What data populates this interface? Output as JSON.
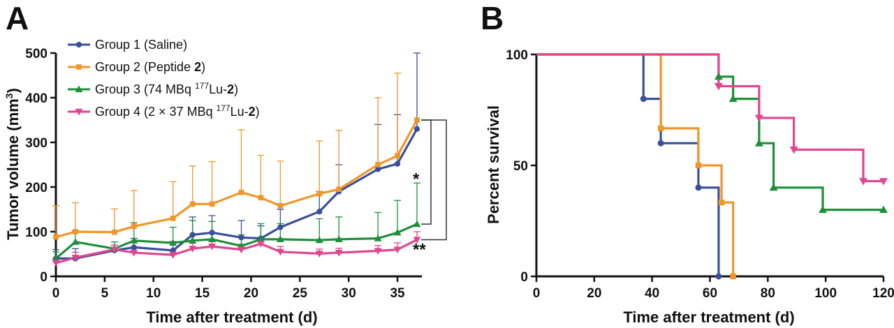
{
  "chart_data": [
    {
      "panel": "A",
      "type": "line",
      "xlabel": "Time after treatment (d)",
      "ylabel": "Tumor volume (mm3)",
      "ylabel_main": "Tumor volume (mm",
      "ylabel_sup": "3",
      "ylabel_close": ")",
      "xlim": [
        0,
        37.5
      ],
      "ylim": [
        0,
        500
      ],
      "xticks": [
        "0",
        "5",
        "10",
        "15",
        "20",
        "25",
        "30",
        "35"
      ],
      "xtick_values": [
        0,
        5,
        10,
        15,
        20,
        25,
        30,
        35
      ],
      "yticks": [
        "0",
        "100",
        "200",
        "300",
        "400",
        "500"
      ],
      "ytick_values": [
        0,
        100,
        200,
        300,
        400,
        500
      ],
      "legend_position": "top-left",
      "series": [
        {
          "name": "Group 1 (Saline)",
          "label_parts": [
            {
              "t": "Group 1 (Saline)"
            }
          ],
          "color": "#3a4f9a",
          "marker": "circle",
          "x": [
            0,
            2,
            6,
            8,
            12,
            14,
            16,
            19,
            21,
            23,
            27,
            29,
            33,
            35,
            37
          ],
          "y": [
            40,
            40,
            58,
            65,
            58,
            93,
            98,
            87,
            85,
            110,
            145,
            190,
            240,
            252,
            330
          ],
          "err": [
            20,
            22,
            12,
            20,
            20,
            40,
            38,
            38,
            28,
            40,
            45,
            60,
            100,
            110,
            170
          ]
        },
        {
          "name": "Group 2 (Peptide 2)",
          "label_parts": [
            {
              "t": "Group 2 (Peptide "
            },
            {
              "t": "2",
              "b": true
            },
            {
              "t": ")"
            }
          ],
          "color": "#f0962a",
          "marker": "square",
          "x": [
            0,
            2,
            6,
            8,
            12,
            14,
            16,
            19,
            21,
            23,
            27,
            29,
            33,
            35,
            37
          ],
          "y": [
            88,
            100,
            99,
            112,
            130,
            162,
            162,
            188,
            176,
            158,
            185,
            195,
            250,
            270,
            350
          ],
          "err": [
            70,
            65,
            52,
            80,
            82,
            85,
            95,
            140,
            95,
            100,
            118,
            132,
            150,
            185,
            0
          ]
        },
        {
          "name": "Group 3 (74 MBq 177Lu-2)",
          "label_parts": [
            {
              "t": "Group 3 (74 MBq "
            },
            {
              "t": "177",
              "sup": true
            },
            {
              "t": "Lu-"
            },
            {
              "t": "2",
              "b": true
            },
            {
              "t": ")"
            }
          ],
          "color": "#1f8f3a",
          "marker": "triangle-up",
          "x": [
            0,
            2,
            6,
            8,
            12,
            14,
            16,
            19,
            21,
            23,
            27,
            29,
            33,
            35,
            37
          ],
          "y": [
            40,
            77,
            62,
            80,
            75,
            80,
            83,
            68,
            83,
            83,
            81,
            83,
            85,
            98,
            117
          ],
          "err": [
            15,
            25,
            15,
            40,
            35,
            45,
            40,
            25,
            35,
            35,
            48,
            50,
            58,
            72,
            92
          ]
        },
        {
          "name": "Group 4 (2 × 37 MBq 177Lu-2)",
          "label_parts": [
            {
              "t": "Group 4 (2 × 37 MBq "
            },
            {
              "t": "177",
              "sup": true
            },
            {
              "t": "Lu-"
            },
            {
              "t": "2",
              "b": true
            },
            {
              "t": ")"
            }
          ],
          "color": "#e0468f",
          "marker": "triangle-down",
          "x": [
            0,
            2,
            6,
            8,
            12,
            14,
            16,
            19,
            21,
            23,
            27,
            29,
            33,
            35,
            37
          ],
          "y": [
            30,
            42,
            60,
            53,
            48,
            62,
            67,
            60,
            73,
            55,
            51,
            53,
            57,
            60,
            82
          ],
          "err": [
            10,
            12,
            10,
            10,
            10,
            12,
            12,
            12,
            14,
            12,
            10,
            10,
            12,
            15,
            18
          ]
        }
      ],
      "annotations": [
        {
          "text": "*",
          "between": [
            "Group 2 (Peptide 2)",
            "Group 3 (74 MBq 177Lu-2)"
          ]
        },
        {
          "text": "**",
          "between": [
            "Group 2 (Peptide 2)",
            "Group 4 (2 × 37 MBq 177Lu-2)"
          ]
        }
      ]
    },
    {
      "panel": "B",
      "type": "line",
      "subtype": "step",
      "xlabel": "Time after treatment (d)",
      "ylabel": "Percent survival",
      "xlim": [
        0,
        120
      ],
      "ylim": [
        0,
        100
      ],
      "xticks": [
        "0",
        "20",
        "40",
        "60",
        "80",
        "100",
        "120"
      ],
      "xtick_values": [
        0,
        20,
        40,
        60,
        80,
        100,
        120
      ],
      "yticks": [
        "0",
        "50",
        "100"
      ],
      "ytick_values": [
        0,
        50,
        100
      ],
      "series": [
        {
          "color": "#3a4f9a",
          "marker": "circle",
          "x": [
            0,
            37,
            43,
            56,
            63
          ],
          "y": [
            100,
            80,
            60,
            40,
            0
          ]
        },
        {
          "color": "#f0962a",
          "marker": "square",
          "x": [
            0,
            43,
            56,
            64,
            68
          ],
          "y": [
            100,
            66.7,
            50,
            33.3,
            0
          ]
        },
        {
          "color": "#1f8f3a",
          "marker": "triangle-up",
          "x": [
            0,
            63,
            68,
            77,
            82,
            99,
            120
          ],
          "y": [
            100,
            90,
            80,
            60,
            40,
            30,
            30
          ]
        },
        {
          "color": "#e0468f",
          "marker": "triangle-down",
          "x": [
            0,
            63,
            77,
            89,
            113,
            120
          ],
          "y": [
            100,
            85.7,
            71.4,
            57.1,
            42.9,
            42.9
          ]
        }
      ]
    }
  ]
}
